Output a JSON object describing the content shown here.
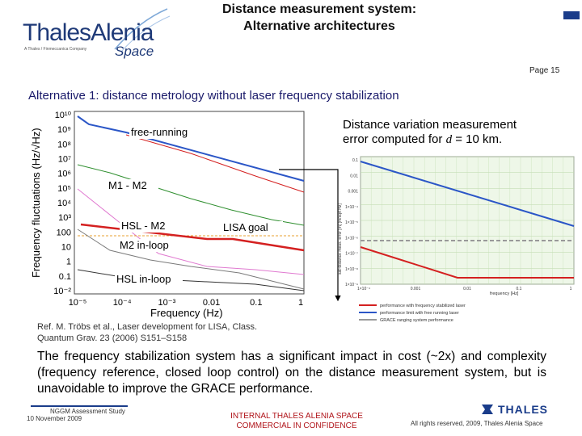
{
  "header": {
    "logo_text": "ThalesAlenia",
    "logo_tagline": "A Thales / Finmeccanica Company",
    "logo_space": "Space",
    "title_line1": "Distance measurement system:",
    "title_line2": "Alternative architectures",
    "page": "Page 15"
  },
  "subtitle": "Alternative 1: distance metrology without laser frequency stabilization",
  "left_chart": {
    "ylabel": "Frequency fluctuations (Hz/√Hz)",
    "xlabel": "Frequency (Hz)",
    "yticks": [
      "10¹⁰",
      "10⁹",
      "10⁸",
      "10⁷",
      "10⁶",
      "10⁵",
      "10⁴",
      "10³",
      "100",
      "10",
      "1",
      "0.1",
      "10⁻²"
    ],
    "xticks": [
      "10⁻⁵",
      "10⁻⁴",
      "10⁻³",
      "0.01",
      "0.1",
      "1"
    ],
    "labels": {
      "free_running": "free-running",
      "m1_m2": "M1 - M2",
      "hsl_m2": "HSL - M2",
      "lisa_goal": "LISA goal",
      "m2_inloop": "M2 in-loop",
      "hsl_inloop": "HSL in-loop"
    },
    "colors": {
      "blue": "#2b56c7",
      "red": "#d42020",
      "green": "#2f8f2f",
      "pink": "#e07ad0",
      "orange": "#e8a030",
      "gray": "#7a7a7a"
    }
  },
  "reference": {
    "line1": "Ref. M. Tröbs et al., Laser development for LISA, Class.",
    "line2": "Quantum Grav. 23 (2006) S151–S158"
  },
  "right_caption": {
    "line1": "Distance variation measurement",
    "line2_prefix": "error computed for ",
    "line2_var": "d",
    "line2_suffix": " = 10 km."
  },
  "right_chart": {
    "ylabel": "sat-distance meas. error [m] [m/sqrt Hz]",
    "xlabel": "frequency [Hz]",
    "yticks": [
      "0.1",
      "0.01",
      "0.001",
      "1×10⁻⁴",
      "1×10⁻⁵",
      "1×10⁻⁶",
      "1×10⁻⁷",
      "1×10⁻⁸",
      "1×10⁻⁹"
    ],
    "xticks": [
      "1×10⁻⁴",
      "0.001",
      "0.01",
      "0.1",
      "1"
    ],
    "legend": [
      {
        "label": "performance with frequency stabilized laser",
        "color": "#d42020"
      },
      {
        "label": "performance limit with free running laser",
        "color": "#2b56c7"
      },
      {
        "label": "GRACE ranging system performance",
        "color": "#999999"
      }
    ]
  },
  "body_text": "The frequency stabilization system has a significant impact in cost (~2x) and complexity (frequency reference, closed loop control) on the distance measurement system, but is unavoidable to improve the GRACE performance.",
  "footer": {
    "study": "NGGM Assessment Study",
    "date": "10 November 2009",
    "internal_line1": "INTERNAL THALES ALENIA SPACE",
    "internal_line2": "COMMERCIAL IN CONFIDENCE",
    "thales": "THALES",
    "rights": "All rights reserved, 2009, Thales Alenia Space"
  }
}
